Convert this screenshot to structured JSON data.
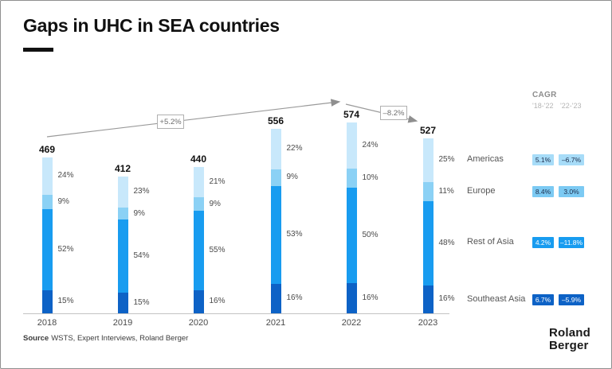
{
  "title": "Gaps in UHC in SEA countries",
  "source": {
    "label": "Source",
    "text": "WSTS, Expert Interviews, Roland Berger"
  },
  "logo": {
    "line1": "Roland",
    "line2": "Berger"
  },
  "annotations": {
    "rise": "+5.2%",
    "fall": "–8.2%"
  },
  "cagr_header": {
    "title": "CAGR",
    "period1": "'18-'22",
    "period2": "'22-'23"
  },
  "chart_data": {
    "type": "bar",
    "stacked": true,
    "title": "Gaps in UHC in SEA countries",
    "categories": [
      "2018",
      "2019",
      "2020",
      "2021",
      "2022",
      "2023"
    ],
    "totals": [
      469,
      412,
      440,
      556,
      574,
      527
    ],
    "series": [
      {
        "name": "Southeast Asia",
        "bar_color": "#0D62C6",
        "values_pct": [
          15,
          15,
          16,
          16,
          16,
          16
        ]
      },
      {
        "name": "Rest of Asia",
        "bar_color": "#189CF0",
        "values_pct": [
          52,
          54,
          55,
          53,
          50,
          48
        ]
      },
      {
        "name": "Europe",
        "bar_color": "#8BD1F5",
        "values_pct": [
          9,
          9,
          9,
          9,
          10,
          11
        ]
      },
      {
        "name": "Americas",
        "bar_color": "#C8E8FB",
        "values_pct": [
          24,
          23,
          21,
          22,
          24,
          25
        ]
      }
    ],
    "annotations": [
      {
        "label": "+5.2%",
        "from": "2018",
        "to": "2022"
      },
      {
        "label": "–8.2%",
        "from": "2022",
        "to": "2023"
      }
    ],
    "legend_position": "right",
    "grid": false
  },
  "legend": {
    "rows": [
      {
        "label": "Americas",
        "cagr_18_22": "5.1%",
        "cagr_22_23": "–6.7%",
        "badge_bg": "#A7DCF8",
        "badge_text": "#1C2B4A"
      },
      {
        "label": "Europe",
        "cagr_18_22": "8.4%",
        "cagr_22_23": "3.0%",
        "badge_bg": "#7CCAF3",
        "badge_text": "#1C2B4A"
      },
      {
        "label": "Rest of Asia",
        "cagr_18_22": "4.2%",
        "cagr_22_23": "–11.8%",
        "badge_bg": "#189CF0",
        "badge_text": "#FFFFFF"
      },
      {
        "label": "Southeast Asia",
        "cagr_18_22": "6.7%",
        "cagr_22_23": "–5.9%",
        "badge_bg": "#0D62C6",
        "badge_text": "#FFFFFF"
      }
    ]
  }
}
